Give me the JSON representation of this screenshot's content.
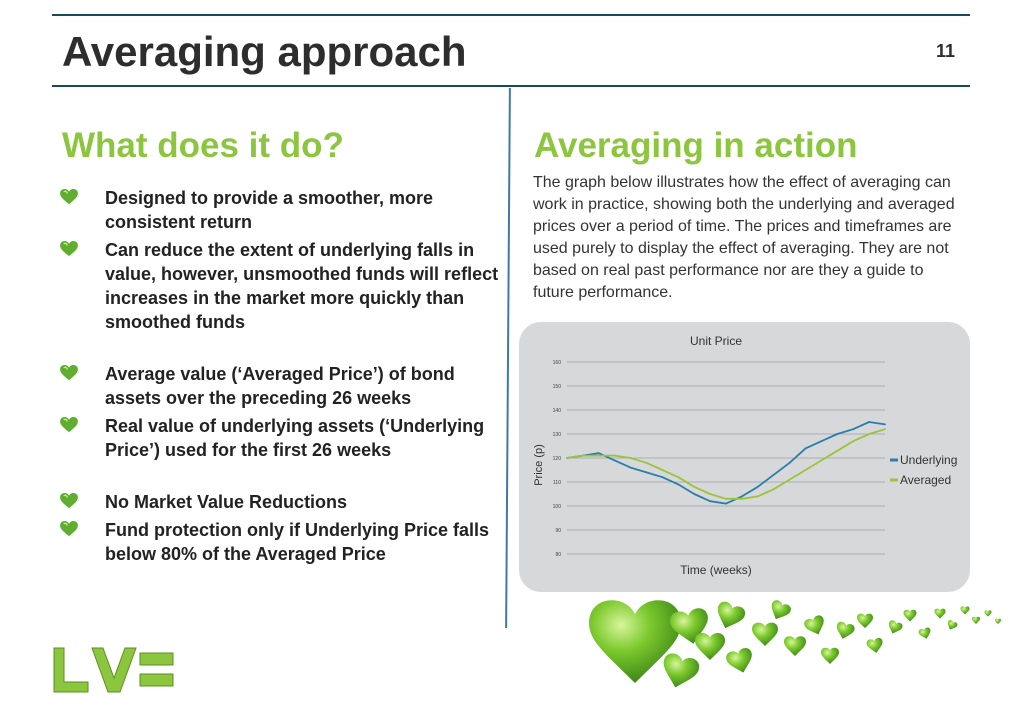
{
  "slide": {
    "title": "Averaging approach",
    "page_number": "11"
  },
  "left": {
    "heading": "What does it do?",
    "bullets": [
      "Designed to provide a smoother, more consistent return",
      "Can reduce the extent of underlying falls in value, however, unsmoothed funds will reflect increases in the market more quickly than smoothed funds",
      "Average value (‘Averaged Price’) of bond assets over the preceding 26 weeks",
      "Real value of underlying assets (‘Underlying Price’) used for the first 26 weeks",
      "No Market Value Reductions",
      "Fund protection only if Underlying Price falls below 80% of the Averaged Price"
    ],
    "bullet_icon": "green-heart-icon"
  },
  "right": {
    "heading": "Averaging in action",
    "intro": "The graph below illustrates how the effect of averaging can work in practice, showing both the underlying and averaged prices over a period of time. The prices and timeframes are used purely to display the effect of averaging. They are not based on real past performance nor are they a guide to future performance."
  },
  "colors": {
    "title_text": "#2d2d2d",
    "accent_green": "#8cc63f",
    "rule": "#1b4a5a",
    "underlying_series": "#2a7ea8",
    "averaged_series": "#9bc43c"
  },
  "chart_data": {
    "type": "line",
    "title": "Unit Price",
    "xlabel": "Time (weeks)",
    "ylabel": "Price (p)",
    "ylim": [
      80,
      160
    ],
    "yticks": [
      80,
      90,
      100,
      110,
      120,
      130,
      140,
      150,
      160
    ],
    "grid": true,
    "legend_position": "right",
    "x": [
      0,
      5,
      10,
      15,
      20,
      25,
      30,
      35,
      40,
      45,
      50,
      55,
      60,
      65,
      70,
      75,
      80,
      85,
      90,
      95,
      100
    ],
    "series": [
      {
        "name": "Underlying",
        "color": "#2a7ea8",
        "values": [
          120,
          121,
          122,
          119,
          116,
          114,
          112,
          109,
          105,
          102,
          101,
          104,
          108,
          113,
          118,
          124,
          127,
          130,
          132,
          135,
          134
        ]
      },
      {
        "name": "Averaged",
        "color": "#9bc43c",
        "values": [
          120,
          121,
          121,
          121,
          120,
          118,
          115,
          112,
          108,
          105,
          103,
          103,
          104,
          107,
          111,
          115,
          119,
          123,
          127,
          130,
          132
        ]
      }
    ]
  },
  "logo": {
    "text": "LV="
  }
}
